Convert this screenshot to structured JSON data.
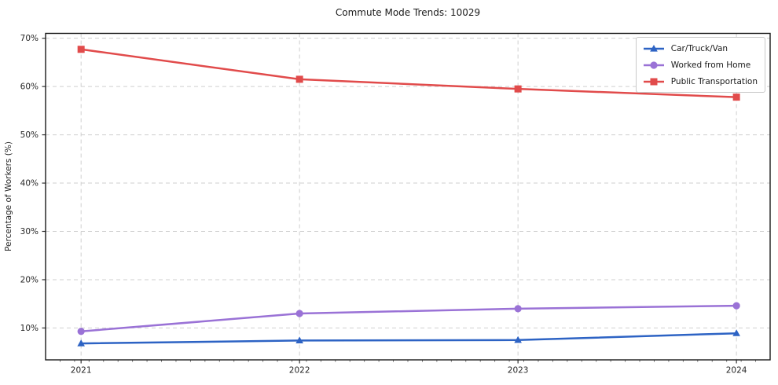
{
  "chart_data": {
    "type": "line",
    "title": "Commute Mode Trends: 10029",
    "xlabel": "",
    "ylabel": "Percentage of Workers (%)",
    "categories": [
      "2021",
      "2022",
      "2023",
      "2024"
    ],
    "series": [
      {
        "name": "Car/Truck/Van",
        "values": [
          6.8,
          7.4,
          7.5,
          8.9
        ],
        "color": "#2d63c4",
        "marker": "triangle"
      },
      {
        "name": "Worked from Home",
        "values": [
          9.3,
          13.0,
          14.0,
          14.6
        ],
        "color": "#9a72d6",
        "marker": "circle"
      },
      {
        "name": "Public Transportation",
        "values": [
          67.7,
          61.5,
          59.5,
          57.8
        ],
        "color": "#e14b4b",
        "marker": "square"
      }
    ],
    "ylim": [
      3.4,
      71.0
    ],
    "yticks": [
      {
        "value": 10,
        "label": "10%"
      },
      {
        "value": 20,
        "label": "20%"
      },
      {
        "value": 30,
        "label": "30%"
      },
      {
        "value": 40,
        "label": "40%"
      },
      {
        "value": 50,
        "label": "50%"
      },
      {
        "value": 60,
        "label": "60%"
      },
      {
        "value": 70,
        "label": "70%"
      }
    ],
    "grid": true,
    "grid_style": "dashed",
    "legend_position": "upper right"
  },
  "style": {
    "grid_color": "#cfcfcf",
    "spine_color": "#1a1a1a",
    "tick_color": "#333333",
    "minor_tick_color": "#666666",
    "text_color": "#262626",
    "background": "#ffffff"
  }
}
